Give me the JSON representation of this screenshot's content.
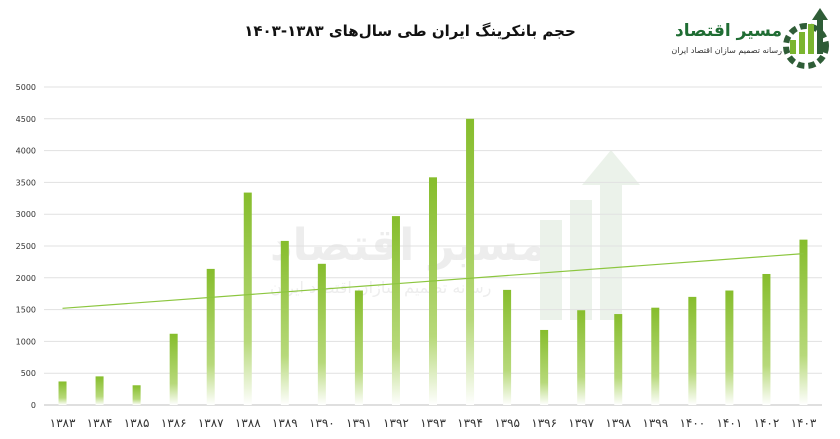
{
  "logo": {
    "brand": "مسیر اقتصاد",
    "tagline": "رسانه تصمیم سازان اقتصاد ایران"
  },
  "chart_data": {
    "type": "bar",
    "title": "حجم بانکرینگ ایران طی سال‌های ۱۳۸۳-۱۴۰۳",
    "categories": [
      "۱۳۸۳",
      "۱۳۸۴",
      "۱۳۸۵",
      "۱۳۸۶",
      "۱۳۸۷",
      "۱۳۸۸",
      "۱۳۸۹",
      "۱۳۹۰",
      "۱۳۹۱",
      "۱۳۹۲",
      "۱۳۹۳",
      "۱۳۹۴",
      "۱۳۹۵",
      "۱۳۹۶",
      "۱۳۹۷",
      "۱۳۹۸",
      "۱۳۹۹",
      "۱۴۰۰",
      "۱۴۰۱",
      "۱۴۰۲",
      "۱۴۰۳"
    ],
    "values": [
      370,
      450,
      310,
      1120,
      2140,
      3340,
      2580,
      2220,
      1800,
      2970,
      3580,
      4500,
      1810,
      1180,
      1490,
      1430,
      1530,
      1700,
      1800,
      2060,
      2600
    ],
    "yticks": [
      "0",
      "500",
      "1000",
      "1500",
      "2000",
      "2500",
      "3000",
      "3500",
      "4000",
      "4500",
      "5000"
    ],
    "ylim": [
      0,
      5000
    ],
    "trendline": {
      "start": 1520,
      "end": 2380
    },
    "grid": true,
    "colors": {
      "bar_top": "#86bd2c",
      "bar_bottom": "#ffffff",
      "trend": "#8cc63f",
      "grid": "#e1e1e1"
    }
  }
}
